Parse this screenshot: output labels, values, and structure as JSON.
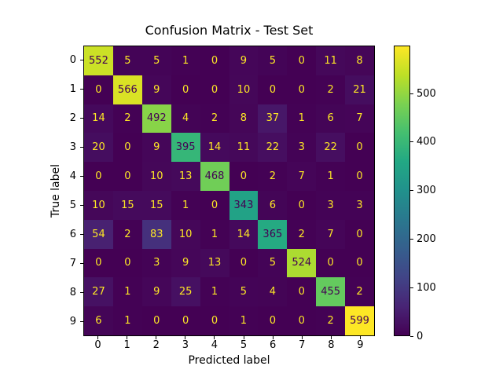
{
  "figure": {
    "background_color": "#ffffff",
    "text_color": "#000000"
  },
  "chart_data": {
    "type": "heatmap",
    "title": "Confusion Matrix - Test Set",
    "xlabel": "Predicted label",
    "ylabel": "True label",
    "x_tick_labels": [
      "0",
      "1",
      "2",
      "3",
      "4",
      "5",
      "6",
      "7",
      "8",
      "9"
    ],
    "y_tick_labels": [
      "0",
      "1",
      "2",
      "3",
      "4",
      "5",
      "6",
      "7",
      "8",
      "9"
    ],
    "matrix": [
      [
        552,
        5,
        5,
        1,
        0,
        9,
        5,
        0,
        11,
        8
      ],
      [
        0,
        566,
        9,
        0,
        0,
        10,
        0,
        0,
        2,
        21
      ],
      [
        14,
        2,
        492,
        4,
        2,
        8,
        37,
        1,
        6,
        7
      ],
      [
        20,
        0,
        9,
        395,
        14,
        11,
        22,
        3,
        22,
        0
      ],
      [
        0,
        0,
        10,
        13,
        468,
        0,
        2,
        7,
        1,
        0
      ],
      [
        10,
        15,
        15,
        1,
        0,
        343,
        6,
        0,
        3,
        3
      ],
      [
        54,
        2,
        83,
        10,
        1,
        14,
        365,
        2,
        7,
        0
      ],
      [
        0,
        0,
        3,
        9,
        13,
        0,
        5,
        524,
        0,
        0
      ],
      [
        27,
        1,
        9,
        25,
        1,
        5,
        4,
        0,
        455,
        2
      ],
      [
        6,
        1,
        0,
        0,
        0,
        1,
        0,
        0,
        2,
        599
      ]
    ],
    "vmin": 0,
    "vmax": 599,
    "colormap": "viridis",
    "grid": false,
    "colorbar": {
      "position": "right",
      "ticks": [
        0,
        100,
        200,
        300,
        400,
        500
      ]
    },
    "annotation_color_low_values": "#fde725",
    "annotation_color_high_values": "#440154"
  }
}
